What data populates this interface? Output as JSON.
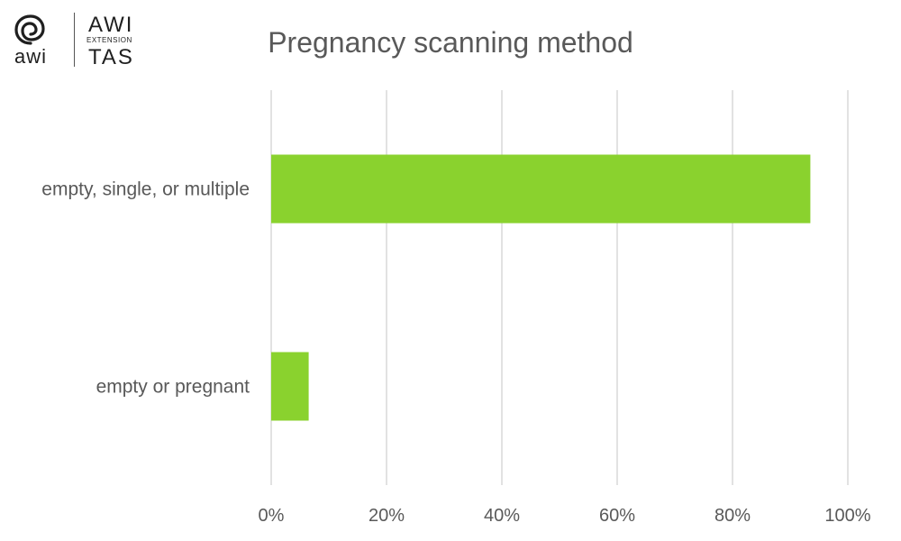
{
  "logo": {
    "mark_text": "awi",
    "name": "AWI",
    "sub": "EXTENSION",
    "region": "TAS",
    "icon": "swirl-icon"
  },
  "chart_data": {
    "type": "bar",
    "orientation": "horizontal",
    "title": "Pregnancy scanning method",
    "categories": [
      "empty, single, or multiple",
      "empty or pregnant"
    ],
    "values": [
      93.5,
      6.5
    ],
    "xlim": [
      0,
      100
    ],
    "xticks": [
      "0%",
      "20%",
      "40%",
      "60%",
      "80%",
      "100%"
    ],
    "xtick_values": [
      0,
      20,
      40,
      60,
      80,
      100
    ],
    "grid": true,
    "bar_color": "#8ad22e",
    "grid_color": "#d9d9d9",
    "text_color": "#595959"
  }
}
